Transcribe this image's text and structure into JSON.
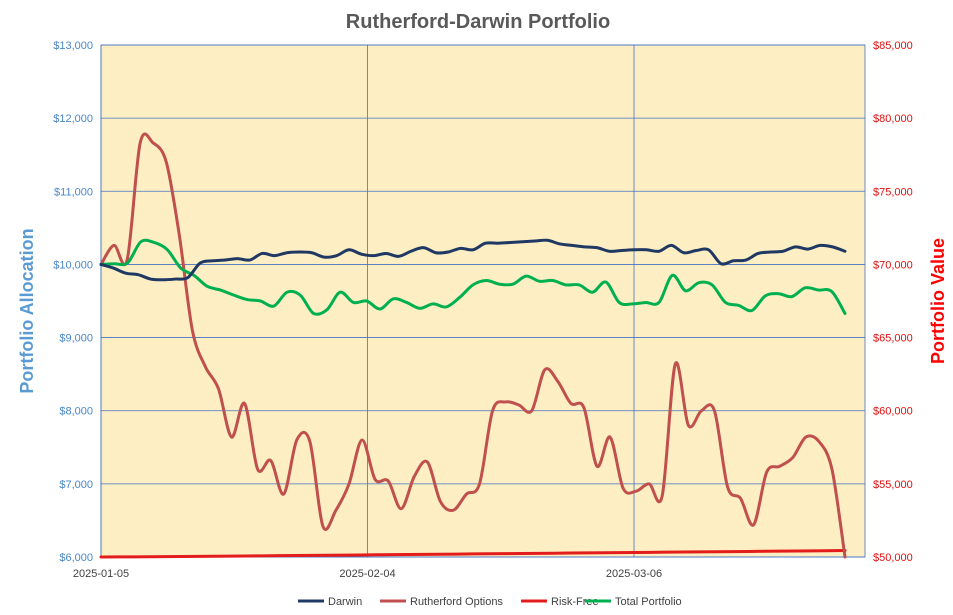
{
  "chart_data": {
    "type": "line",
    "title": "Rutherford-Darwin Portfolio",
    "ylabel_left": "Portfolio Allocation",
    "ylabel_right": "Portfolio Value",
    "xlabel": "",
    "xlim": [
      "2025-01-05",
      "2025-04-01"
    ],
    "ylim_left": [
      6000,
      13000
    ],
    "ylim_right": [
      50000,
      85000
    ],
    "yticks_left": [
      "$6,000",
      "$7,000",
      "$8,000",
      "$9,000",
      "$10,000",
      "$11,000",
      "$12,000",
      "$13,000"
    ],
    "yticks_right": [
      "$50,000",
      "$55,000",
      "$60,000",
      "$65,000",
      "$70,000",
      "$75,000",
      "$80,000",
      "$85,000"
    ],
    "xticks": [
      "2025-01-05",
      "2025-02-04",
      "2025-03-06"
    ],
    "grid": true,
    "legend_position": "bottom",
    "background_color": "#fdefc3",
    "series": [
      {
        "name": "Darwin",
        "color": "#1f3864",
        "axis": "left",
        "values": [
          10000,
          9950,
          9880,
          9860,
          9800,
          9790,
          9800,
          9820,
          10020,
          10050,
          10060,
          10080,
          10060,
          10150,
          10120,
          10160,
          10170,
          10160,
          10100,
          10120,
          10200,
          10140,
          10120,
          10150,
          10110,
          10180,
          10230,
          10160,
          10170,
          10220,
          10200,
          10290,
          10290,
          10300,
          10310,
          10320,
          10330,
          10280,
          10260,
          10240,
          10230,
          10180,
          10190,
          10200,
          10200,
          10180,
          10260,
          10160,
          10190,
          10200,
          10010,
          10050,
          10060,
          10150,
          10170,
          10180,
          10240,
          10210,
          10260,
          10240,
          10180
        ]
      },
      {
        "name": "Rutherford Options",
        "color": "#c0504d",
        "axis": "right",
        "values": [
          70000,
          71300,
          70300,
          78300,
          78300,
          77000,
          72000,
          65500,
          63000,
          61500,
          58200,
          60500,
          56000,
          56600,
          54300,
          58000,
          57900,
          52100,
          53200,
          55000,
          58000,
          55300,
          55200,
          53300,
          55500,
          56500,
          53800,
          53200,
          54300,
          55000,
          60000,
          60600,
          60400,
          60000,
          62800,
          62000,
          60500,
          60200,
          56200,
          58200,
          54700,
          54500,
          55000,
          54200,
          63200,
          59000,
          60000,
          60000,
          54800,
          54000,
          52200,
          55800,
          56200,
          56800,
          58200,
          57900,
          56000,
          50000
        ]
      },
      {
        "name": "Risk-Free",
        "color": "#e31c1c",
        "axis": "left",
        "values": [
          6000,
          6002,
          6005,
          6008,
          6012,
          6016,
          6020,
          6024,
          6028,
          6032,
          6036,
          6040,
          6044,
          6048,
          6052,
          6056,
          6060,
          6064,
          6068,
          6072,
          6076,
          6080,
          6084,
          6088
        ]
      },
      {
        "name": "Total Portfolio",
        "color": "#00b050",
        "axis": "left",
        "values": [
          10000,
          10010,
          10020,
          10310,
          10300,
          10200,
          9950,
          9850,
          9700,
          9650,
          9580,
          9520,
          9500,
          9430,
          9620,
          9580,
          9330,
          9380,
          9620,
          9480,
          9500,
          9390,
          9530,
          9480,
          9400,
          9460,
          9420,
          9550,
          9720,
          9780,
          9730,
          9730,
          9840,
          9770,
          9780,
          9720,
          9720,
          9620,
          9760,
          9480,
          9460,
          9480,
          9480,
          9850,
          9640,
          9750,
          9720,
          9480,
          9440,
          9370,
          9570,
          9600,
          9560,
          9680,
          9650,
          9630,
          9330
        ]
      }
    ]
  }
}
